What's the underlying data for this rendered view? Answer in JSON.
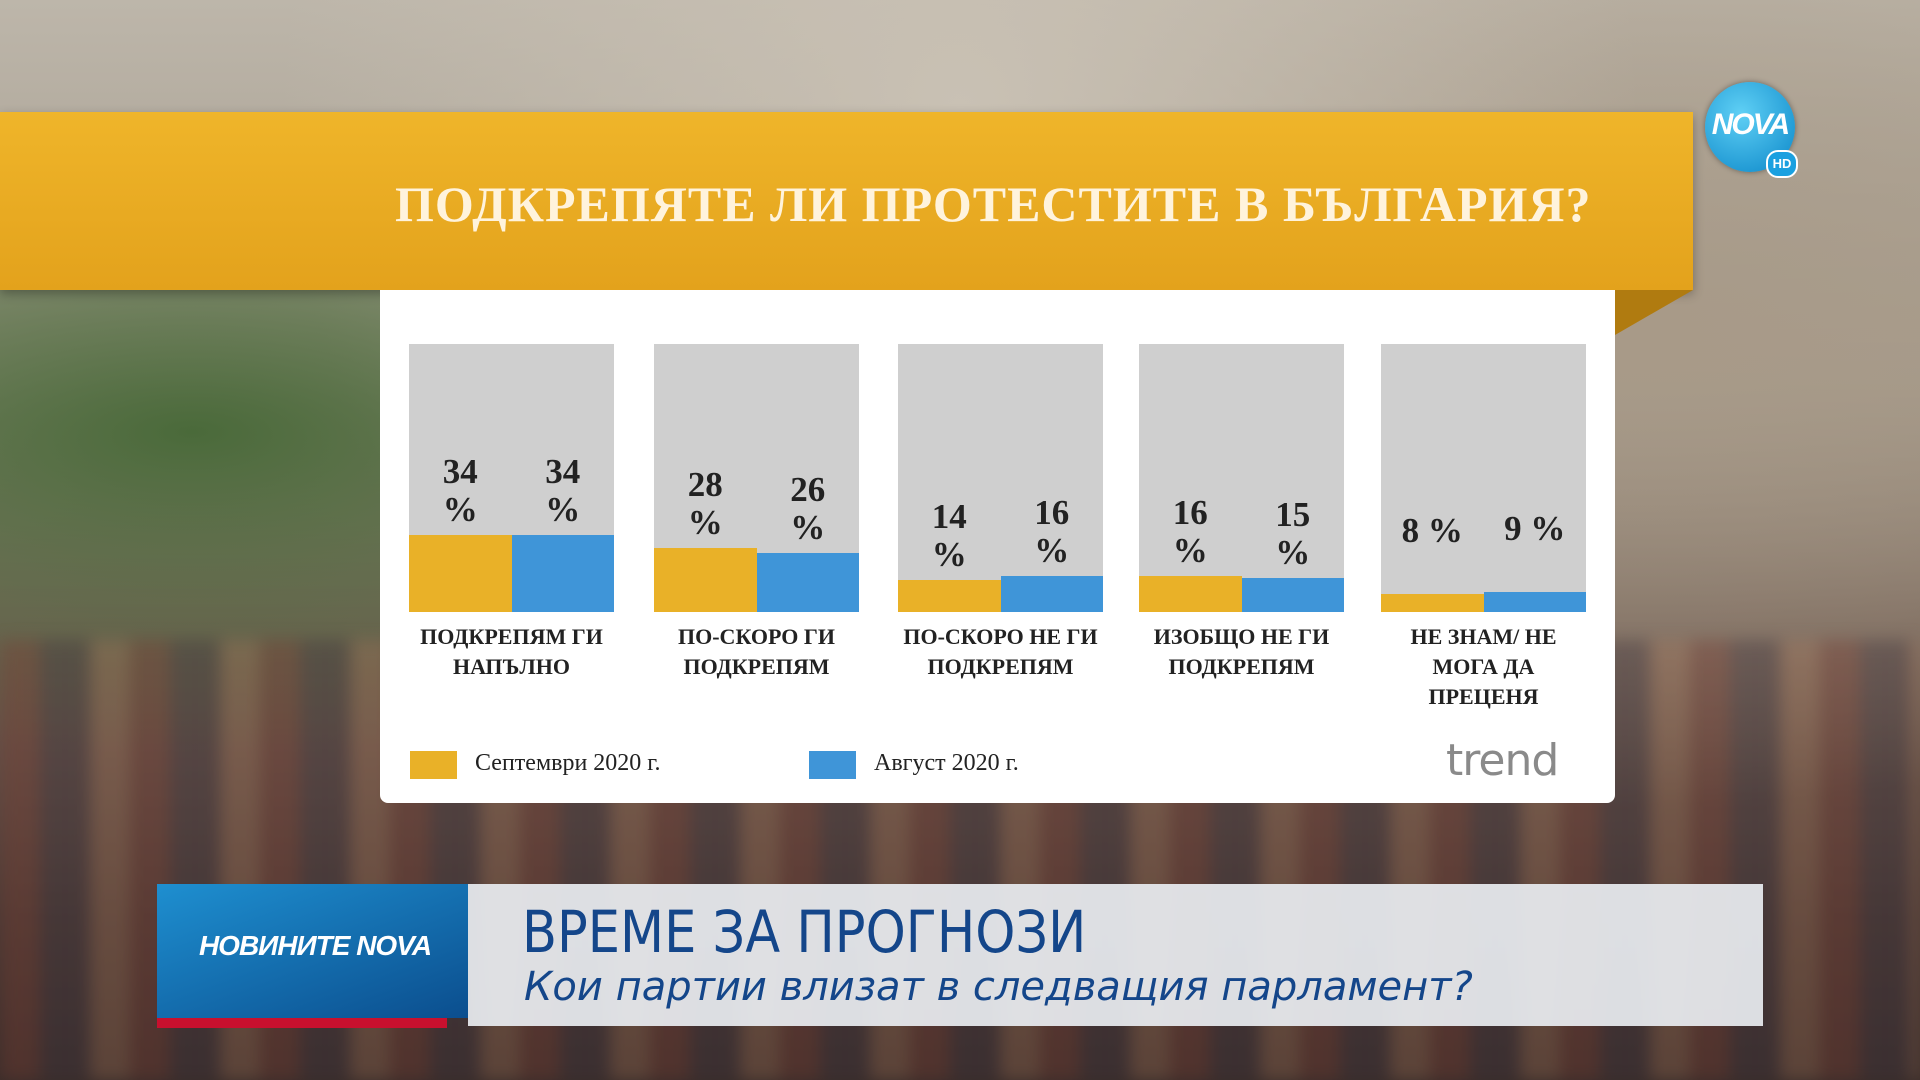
{
  "logo": {
    "brand": "NOVA",
    "hd": "HD"
  },
  "chart_data": {
    "type": "bar",
    "title": "ПОДКРЕПЯТЕ ЛИ ПРОТЕСТИТЕ В БЪЛГАРИЯ?",
    "categories": [
      "ПОДКРЕПЯМ ГИ НАПЪЛНО",
      "ПО-СКОРО ГИ ПОДКРЕПЯМ",
      "ПО-СКОРО НЕ ГИ ПОДКРЕПЯМ",
      "ИЗОБЩО НЕ ГИ ПОДКРЕПЯМ",
      "НЕ ЗНАМ/ НЕ МОГА ДА ПРЕЦЕНЯ"
    ],
    "series": [
      {
        "name": "Септември 2020 г.",
        "color": "#e9b128",
        "values": [
          34,
          28,
          14,
          16,
          8
        ],
        "value_labels": [
          "34 %",
          "28 %",
          "14 %",
          "16 %",
          "8 %"
        ]
      },
      {
        "name": "Август 2020 г.",
        "color": "#3f95d8",
        "values": [
          34,
          26,
          16,
          15,
          9
        ],
        "value_labels": [
          "34 %",
          "26 %",
          "16 %",
          "15 %",
          "9 %"
        ]
      }
    ],
    "source": "trend"
  },
  "lower_third": {
    "brand": "НОВИНИТЕ NOVA",
    "headline": "ВРЕМЕ ЗА ПРОГНОЗИ",
    "subheadline": "Кои партии влизат в следващия парламент?"
  }
}
